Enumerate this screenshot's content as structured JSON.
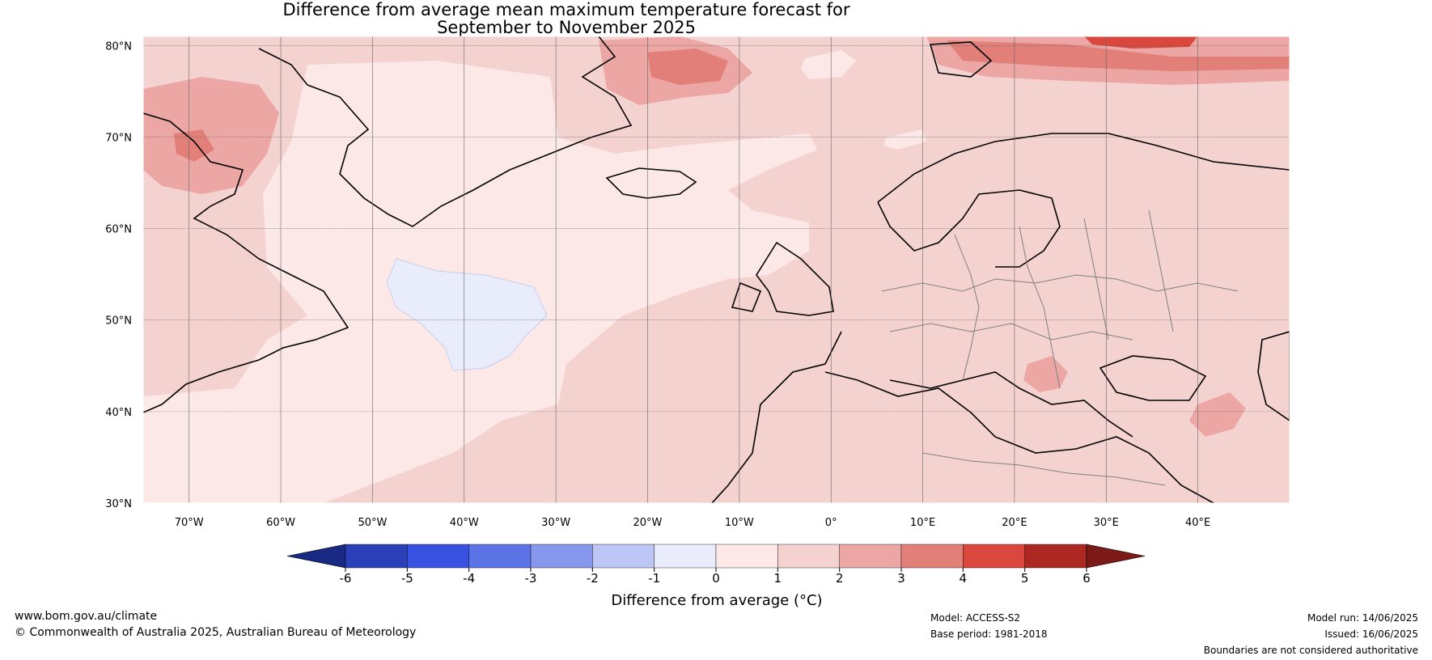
{
  "title": {
    "line1": "Difference from average mean maximum temperature forecast for",
    "line2": "September to November 2025"
  },
  "map": {
    "lat_range": [
      30,
      81
    ],
    "lon_range": [
      -75,
      50
    ],
    "lat_ticks": [
      "30°N",
      "40°N",
      "50°N",
      "60°N",
      "70°N",
      "80°N"
    ],
    "lon_ticks": [
      "70°W",
      "60°W",
      "50°W",
      "40°W",
      "30°W",
      "20°W",
      "10°W",
      "0°",
      "10°E",
      "20°E",
      "30°E",
      "40°E"
    ],
    "lat_values": [
      30,
      40,
      50,
      60,
      70,
      80
    ],
    "lon_values": [
      -70,
      -60,
      -50,
      -40,
      -30,
      -20,
      -10,
      0,
      10,
      20,
      30,
      40
    ],
    "background_anomaly_class": "0 to 1 / 1 to 2 °C",
    "cool_region": "-1 to 0 °C anomaly over central North Atlantic near 50°N 40°W"
  },
  "colorbar": {
    "label": "Difference from average (°C)",
    "ticks": [
      "-6",
      "-5",
      "-4",
      "-3",
      "-2",
      "-1",
      "0",
      "1",
      "2",
      "3",
      "4",
      "5",
      "6"
    ],
    "colors": [
      "#182a84",
      "#2a3fb8",
      "#3851e0",
      "#5c73e6",
      "#8797ec",
      "#bdc6f4",
      "#e8ecfb",
      "#fce9e7",
      "#f4d2d0",
      "#eca7a5",
      "#e27f79",
      "#d9473d",
      "#ad2822",
      "#7b1a17"
    ]
  },
  "footer": {
    "website": "www.bom.gov.au/climate",
    "copyright": "© Commonwealth of Australia 2025, Australian Bureau of Meteorology",
    "model": "Model: ACCESS-S2",
    "base_period": "Base period: 1981-2018",
    "model_run": "Model run: 14/06/2025",
    "issued": "Issued: 16/06/2025",
    "disclaimer": "Boundaries are not considered authoritative"
  }
}
